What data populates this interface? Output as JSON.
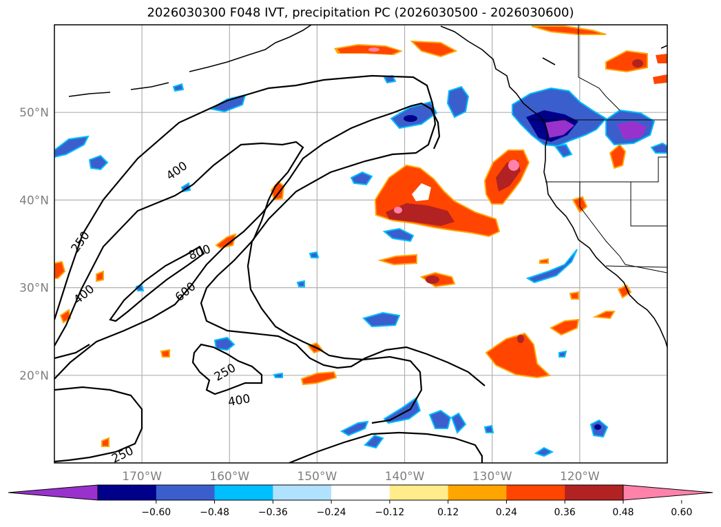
{
  "chart_data": {
    "type": "contour-map",
    "title": "2026030300 F048 IVT, precipitation PC (2026030500 - 2026030600)",
    "lon_range": [
      -180,
      -110
    ],
    "lat_range": [
      10,
      60
    ],
    "lat_ticks": [
      {
        "value": 20,
        "label": "20°N"
      },
      {
        "value": 30,
        "label": "30°N"
      },
      {
        "value": 40,
        "label": "40°N"
      },
      {
        "value": 50,
        "label": "50°N"
      }
    ],
    "lon_ticks": [
      {
        "value": -170,
        "label": "170°W"
      },
      {
        "value": -160,
        "label": "160°W"
      },
      {
        "value": -150,
        "label": "150°W"
      },
      {
        "value": -140,
        "label": "140°W"
      },
      {
        "value": -130,
        "label": "130°W"
      },
      {
        "value": -120,
        "label": "120°W"
      }
    ],
    "ivt_contour_labels": [
      {
        "text": "250",
        "lon": -177.0,
        "lat": 35.2,
        "angle": -55
      },
      {
        "text": "400",
        "lon": -166.0,
        "lat": 43.3,
        "angle": -35
      },
      {
        "text": "800",
        "lon": -163.4,
        "lat": 34.0,
        "angle": -20
      },
      {
        "text": "600",
        "lon": -165.0,
        "lat": 29.5,
        "angle": -40
      },
      {
        "text": "400",
        "lon": -176.6,
        "lat": 29.2,
        "angle": -40
      },
      {
        "text": "250",
        "lon": -160.5,
        "lat": 20.3,
        "angle": -30
      },
      {
        "text": "400",
        "lon": -158.9,
        "lat": 17.1,
        "angle": -10
      },
      {
        "text": "250",
        "lon": -172.2,
        "lat": 10.9,
        "angle": -25
      }
    ],
    "colorbar": {
      "levels": [
        -0.6,
        -0.48,
        -0.36,
        -0.24,
        -0.12,
        0.12,
        0.24,
        0.36,
        0.48,
        0.6
      ],
      "tick_labels": [
        "−0.60",
        "−0.48",
        "−0.36",
        "−0.24",
        "−0.12",
        "0.12",
        "0.24",
        "0.36",
        "0.48",
        "0.60"
      ],
      "colors": [
        "#9932cc",
        "#00008b",
        "#3a5fcd",
        "#00bfff",
        "#b0e2ff",
        "#ffffff",
        "#ffec8b",
        "#ffa500",
        "#ff4500",
        "#b22222",
        "#ff82ab"
      ]
    }
  }
}
